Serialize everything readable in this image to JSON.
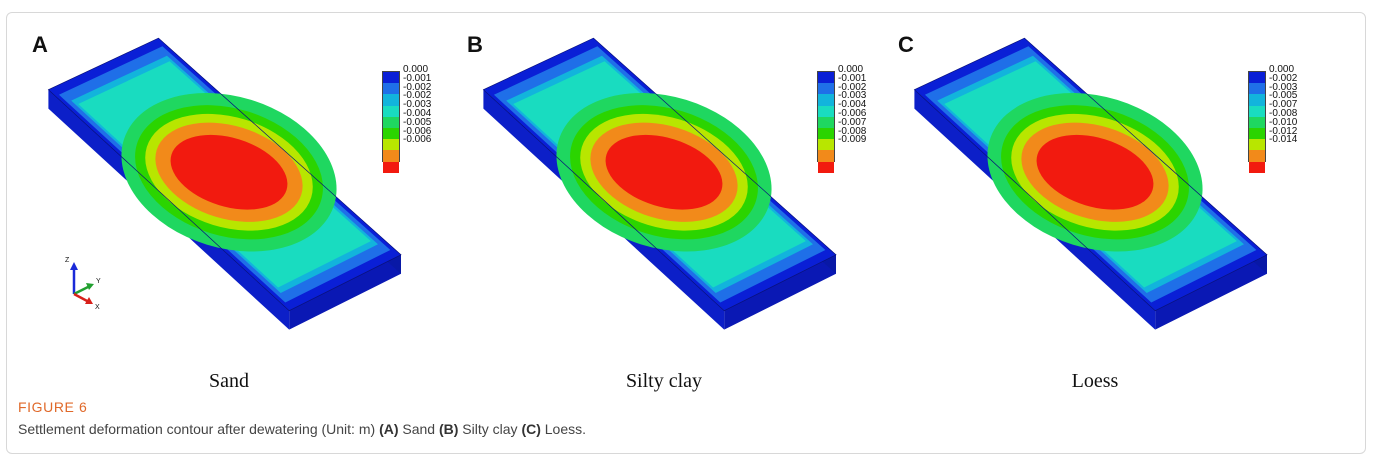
{
  "figure": {
    "label": "FIGURE 6",
    "caption_parts": [
      {
        "text": "Settlement deformation contour after dewatering (Unit: m) ",
        "bold": false
      },
      {
        "text": "(A)",
        "bold": true
      },
      {
        "text": " Sand ",
        "bold": false
      },
      {
        "text": "(B)",
        "bold": true
      },
      {
        "text": " Silty clay ",
        "bold": false
      },
      {
        "text": "(C)",
        "bold": true
      },
      {
        "text": " Loess.",
        "bold": false
      }
    ]
  },
  "contour_colors": [
    "#0a1fd6",
    "#1f6fe8",
    "#12b4dc",
    "#19dcc0",
    "#1fd760",
    "#2bd400",
    "#b8e600",
    "#f28a1a",
    "#f21a0f"
  ],
  "panels": [
    {
      "letter": "A",
      "caption": "Sand",
      "legend_values": [
        "0.000",
        "-0.001",
        "-0.002",
        "-0.002",
        "-0.003",
        "-0.004",
        "-0.005",
        "-0.006",
        "-0.006"
      ]
    },
    {
      "letter": "B",
      "caption": "Silty clay",
      "legend_values": [
        "0.000",
        "-0.001",
        "-0.002",
        "-0.003",
        "-0.004",
        "-0.006",
        "-0.007",
        "-0.008",
        "-0.009"
      ]
    },
    {
      "letter": "C",
      "caption": "Loess",
      "legend_values": [
        "0.000",
        "-0.002",
        "-0.003",
        "-0.005",
        "-0.007",
        "-0.008",
        "-0.010",
        "-0.012",
        "-0.014"
      ]
    }
  ],
  "axis_triad": {
    "z": "Z",
    "y": "Y",
    "x": "X"
  }
}
